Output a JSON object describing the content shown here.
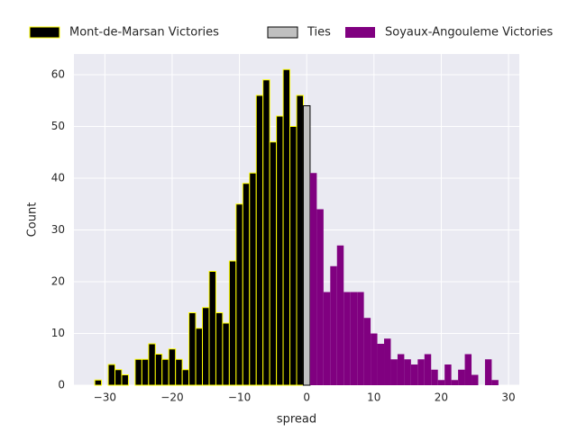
{
  "chart_data": {
    "type": "histogram",
    "xlabel": "spread",
    "ylabel": "Count",
    "xlim": [
      -34.6,
      31.6
    ],
    "ylim": [
      0,
      64
    ],
    "xticks": [
      {
        "value": -30,
        "label": "−30"
      },
      {
        "value": -20,
        "label": "−20"
      },
      {
        "value": -10,
        "label": "−10"
      },
      0,
      10,
      20,
      30
    ],
    "yticks": [
      0,
      10,
      20,
      30,
      40,
      50,
      60
    ],
    "grid": true,
    "legend": "upper center",
    "series": [
      {
        "name": "Mont-de-Marsan Victories",
        "color": "#000000",
        "edgecolor": "#ffff00",
        "bins": [
          -31.5,
          -30.5,
          -29.5,
          -28.5,
          -27.5,
          -26.5,
          -25.5,
          -24.5,
          -23.5,
          -22.5,
          -21.5,
          -20.5,
          -19.5,
          -18.5,
          -17.5,
          -16.5,
          -15.5,
          -14.5,
          -13.5,
          -12.5,
          -11.5,
          -10.5,
          -9.5,
          -8.5,
          -7.5,
          -6.5,
          -5.5,
          -4.5,
          -3.5,
          -2.5,
          -1.5,
          -0.5
        ],
        "values": [
          1,
          0,
          4,
          3,
          2,
          0,
          5,
          5,
          8,
          6,
          5,
          7,
          5,
          3,
          14,
          11,
          15,
          22,
          14,
          12,
          24,
          35,
          39,
          41,
          56,
          59,
          47,
          52,
          61,
          50,
          56
        ]
      },
      {
        "name": "Ties",
        "color": "#c0c0c0",
        "edgecolor": "#000000",
        "bins": [
          -0.5,
          0.5
        ],
        "values": [
          54
        ]
      },
      {
        "name": "Soyaux-Angouleme Victories",
        "color": "#800080",
        "bins": [
          0.5,
          1.5,
          2.5,
          3.5,
          4.5,
          5.5,
          6.5,
          7.5,
          8.5,
          9.5,
          10.5,
          11.5,
          12.5,
          13.5,
          14.5,
          15.5,
          16.5,
          17.5,
          18.5,
          19.5,
          20.5,
          21.5,
          22.5,
          23.5,
          24.5,
          25.5,
          26.5,
          27.5,
          28.5
        ],
        "values": [
          41,
          34,
          18,
          23,
          27,
          18,
          18,
          18,
          13,
          10,
          8,
          9,
          5,
          6,
          5,
          4,
          5,
          6,
          3,
          1,
          4,
          1,
          3,
          6,
          2,
          0,
          5,
          1
        ]
      }
    ]
  }
}
